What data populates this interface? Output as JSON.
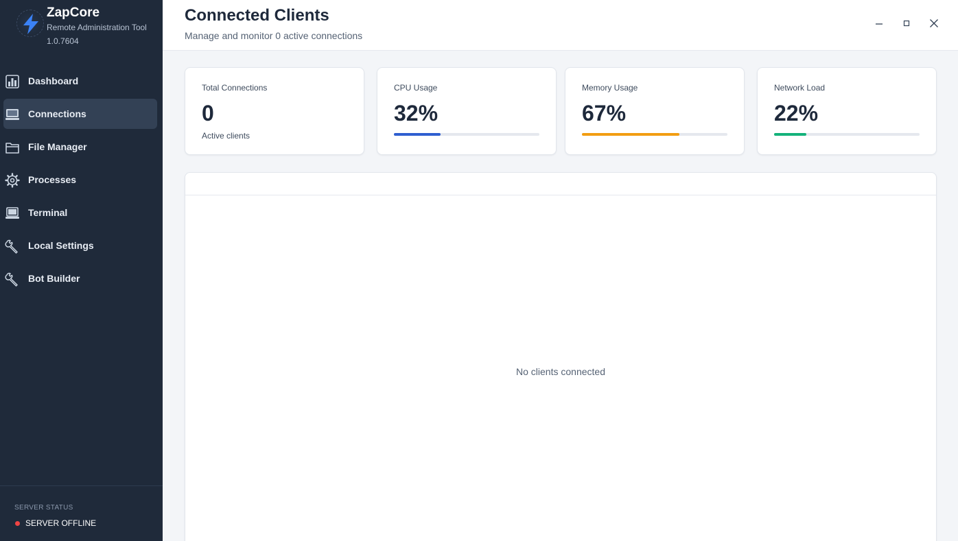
{
  "app": {
    "name": "ZapCore",
    "subtitle": "Remote Administration Tool",
    "version": "1.0.7604"
  },
  "sidebar": {
    "items": [
      {
        "label": "Dashboard",
        "icon": "bar-chart-icon",
        "active": false
      },
      {
        "label": "Connections",
        "icon": "monitor-icon",
        "active": true
      },
      {
        "label": "File Manager",
        "icon": "folder-icon",
        "active": false
      },
      {
        "label": "Processes",
        "icon": "gear-icon",
        "active": false
      },
      {
        "label": "Terminal",
        "icon": "laptop-icon",
        "active": false
      },
      {
        "label": "Local Settings",
        "icon": "wrench-icon",
        "active": false
      },
      {
        "label": "Bot Builder",
        "icon": "wrench-icon",
        "active": false
      }
    ]
  },
  "server_status": {
    "title": "SERVER STATUS",
    "text": "SERVER OFFLINE",
    "color": "#ef4444"
  },
  "header": {
    "title": "Connected Clients",
    "subtitle": "Manage and monitor 0 active connections"
  },
  "window_controls": [
    "minimize-icon",
    "maximize-icon",
    "close-icon"
  ],
  "stats": {
    "total": {
      "label": "Total Connections",
      "value": "0",
      "note": "Active clients"
    },
    "cpu": {
      "label": "CPU Usage",
      "value": "32%",
      "percent": 32,
      "color": "#2f5fd0"
    },
    "memory": {
      "label": "Memory Usage",
      "value": "67%",
      "percent": 67,
      "color": "#f29d12"
    },
    "network": {
      "label": "Network Load",
      "value": "22%",
      "percent": 22,
      "color": "#14b27a"
    }
  },
  "clients": {
    "empty_message": "No clients connected"
  }
}
